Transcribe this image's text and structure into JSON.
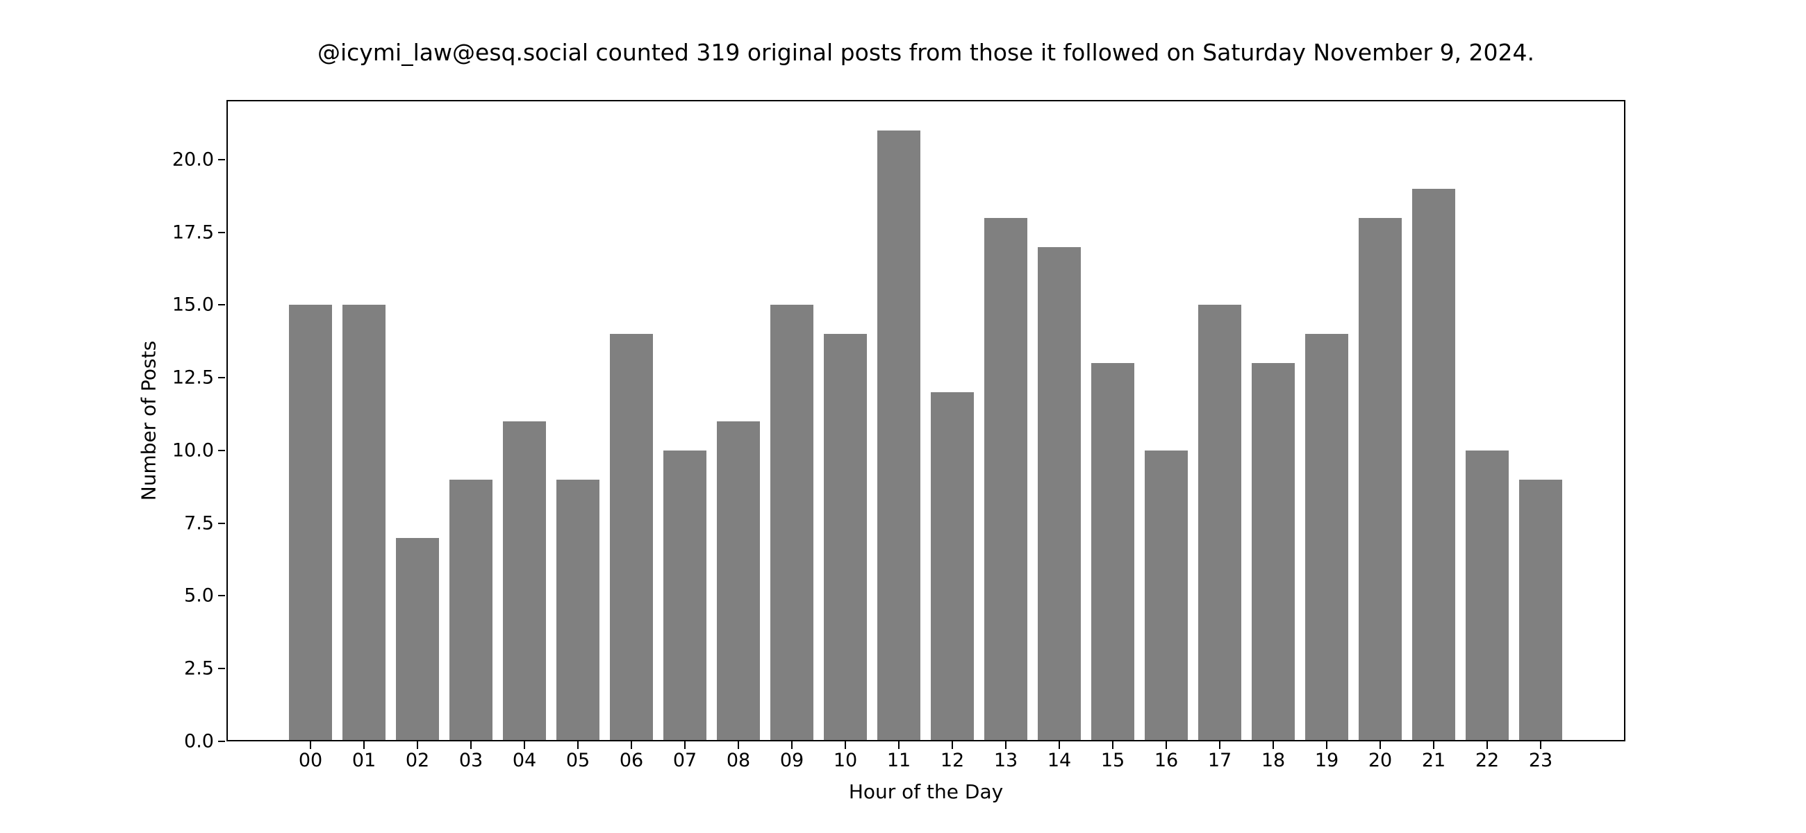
{
  "chart_data": {
    "type": "bar",
    "title": "@icymi_law@esq.social counted 319 original posts from those it followed on Saturday November 9, 2024.",
    "xlabel": "Hour of the Day",
    "ylabel": "Number of Posts",
    "categories": [
      "00",
      "01",
      "02",
      "03",
      "04",
      "05",
      "06",
      "07",
      "08",
      "09",
      "10",
      "11",
      "12",
      "13",
      "14",
      "15",
      "16",
      "17",
      "18",
      "19",
      "20",
      "21",
      "22",
      "23"
    ],
    "values": [
      15,
      15,
      7,
      9,
      11,
      9,
      14,
      10,
      11,
      15,
      14,
      21,
      12,
      18,
      17,
      13,
      10,
      15,
      13,
      14,
      18,
      19,
      10,
      9
    ],
    "ylim": [
      0,
      22.05
    ],
    "yticks": [
      "0.0",
      "2.5",
      "5.0",
      "7.5",
      "10.0",
      "12.5",
      "15.0",
      "17.5",
      "20.0"
    ],
    "grid": false,
    "legend": null,
    "bar_color": "#808080"
  }
}
